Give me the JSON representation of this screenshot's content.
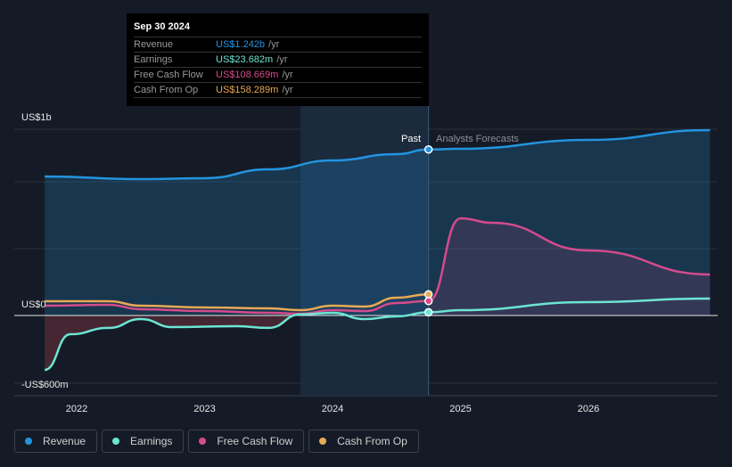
{
  "tooltip": {
    "date": "Sep 30 2024",
    "rows": [
      {
        "label": "Revenue",
        "value": "US$1.242b",
        "unit": "/yr"
      },
      {
        "label": "Earnings",
        "value": "US$23.682m",
        "unit": "/yr"
      },
      {
        "label": "Free Cash Flow",
        "value": "US$108.669m",
        "unit": "/yr"
      },
      {
        "label": "Cash From Op",
        "value": "US$158.289m",
        "unit": "/yr"
      }
    ]
  },
  "markers": {
    "past": "Past",
    "forecast": "Analysts Forecasts"
  },
  "colors": {
    "revenue": "#2394df",
    "earnings": "#6ce5d3",
    "fcf": "#d44b8c",
    "cfo": "#e8a956"
  },
  "chart_data": {
    "type": "line",
    "ylabel_ticks": [
      "US$1b",
      "US$0",
      "-US$600m"
    ],
    "xticks": [
      "2022",
      "2023",
      "2024",
      "2025",
      "2026"
    ],
    "past_end": 2024.75,
    "series": [
      {
        "name": "Revenue",
        "key": "revenue",
        "x": [
          2021.75,
          2022.5,
          2023,
          2023.5,
          2024,
          2024.5,
          2024.75,
          2025,
          2026,
          2026.95
        ],
        "values": [
          1040,
          1020,
          1027,
          1093,
          1160,
          1207,
          1242,
          1247,
          1313,
          1387
        ]
      },
      {
        "name": "Earnings",
        "key": "earnings",
        "x": [
          2021.75,
          2021.95,
          2022.25,
          2022.5,
          2022.75,
          2023.25,
          2023.5,
          2023.75,
          2024,
          2024.25,
          2024.5,
          2024.75,
          2025,
          2026,
          2026.95
        ],
        "values": [
          -482,
          -166,
          -110,
          -32,
          -103,
          -95,
          -110,
          8,
          20,
          -32,
          -8,
          24,
          40,
          100,
          127
        ]
      },
      {
        "name": "Free Cash Flow",
        "key": "fcf",
        "x": [
          2021.75,
          2022.25,
          2022.5,
          2023,
          2023.5,
          2023.75,
          2024,
          2024.25,
          2024.5,
          2024.75,
          2025,
          2025.25,
          2026,
          2026.95
        ],
        "values": [
          73,
          80,
          47,
          33,
          20,
          13,
          40,
          33,
          93,
          108,
          727,
          693,
          487,
          307
        ]
      },
      {
        "name": "Cash From Op",
        "key": "cfo",
        "x": [
          2021.75,
          2022.25,
          2022.5,
          2023,
          2023.5,
          2023.75,
          2024,
          2024.25,
          2024.5,
          2024.75
        ],
        "values": [
          107,
          107,
          73,
          60,
          53,
          40,
          73,
          67,
          133,
          158
        ]
      }
    ]
  }
}
